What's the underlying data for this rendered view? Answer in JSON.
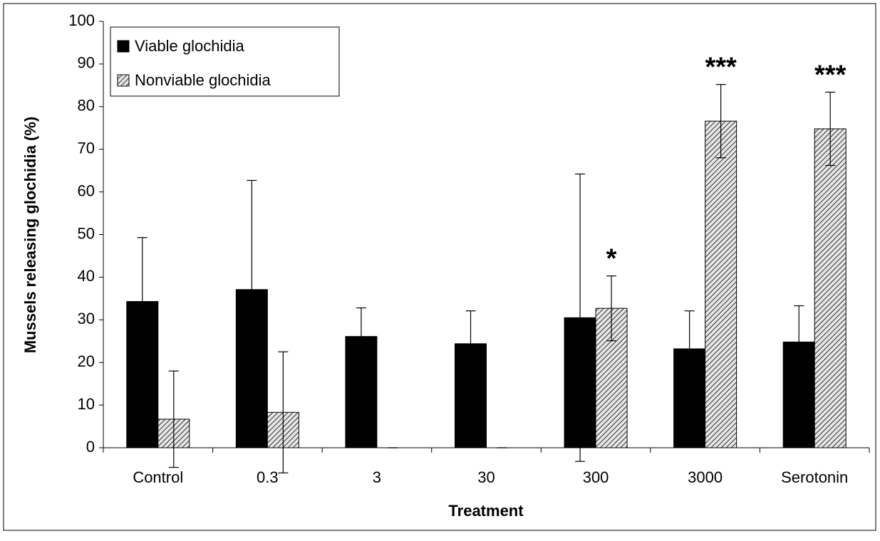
{
  "chart_data": {
    "type": "bar",
    "xlabel": "Treatment",
    "ylabel": "Mussels releasing glochidia (%)",
    "categories": [
      "Control",
      "0.3",
      "3",
      "30",
      "300",
      "3000",
      "Serotonin"
    ],
    "series": [
      {
        "name": "Viable glochidia",
        "color": "#000000",
        "pattern": "solid",
        "values": [
          34.3,
          37.1,
          26.1,
          24.4,
          30.5,
          23.2,
          24.8
        ],
        "errors": [
          15.0,
          25.6,
          6.7,
          7.7,
          33.7,
          8.9,
          8.5
        ]
      },
      {
        "name": "Nonviable glochidia",
        "color": "#9a9a9a",
        "pattern": "hatch",
        "values": [
          6.7,
          8.3,
          0,
          0,
          32.7,
          76.6,
          74.8
        ],
        "errors": [
          11.3,
          14.2,
          0,
          0,
          7.6,
          8.6,
          8.6
        ]
      }
    ],
    "annotations": [
      {
        "text": "*",
        "category": "300"
      },
      {
        "text": "***",
        "category": "3000"
      },
      {
        "text": "***",
        "category": "Serotonin"
      }
    ],
    "ylim": [
      0,
      100
    ],
    "yticks": [
      0,
      10,
      20,
      30,
      40,
      50,
      60,
      70,
      80,
      90,
      100
    ],
    "grid": false,
    "legend": "upper left"
  }
}
